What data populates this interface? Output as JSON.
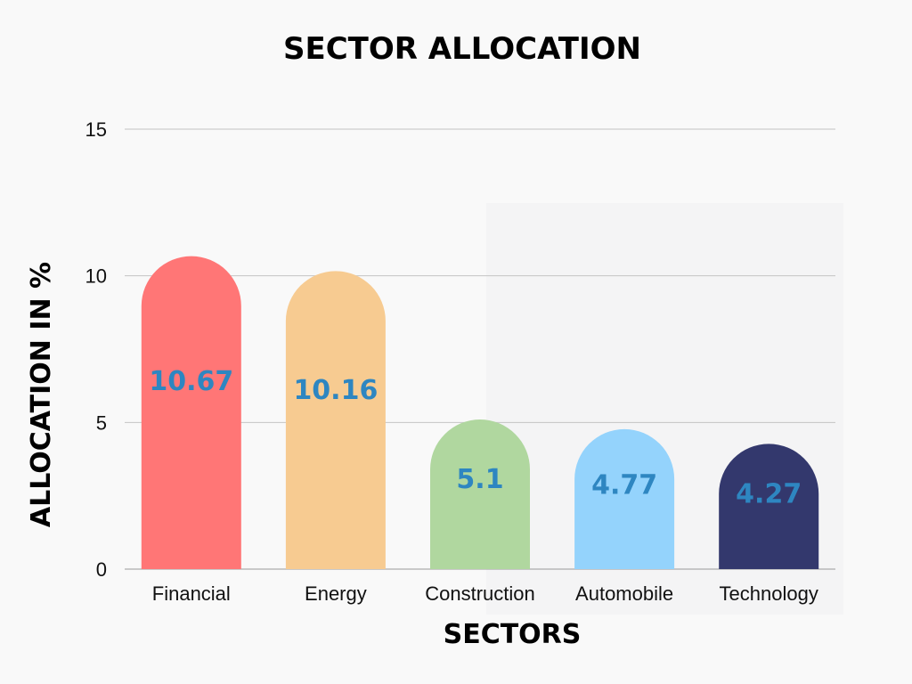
{
  "chart_data": {
    "type": "bar",
    "title": "SECTOR ALLOCATION",
    "xlabel": "SECTORS",
    "ylabel": "ALLOCATION IN %",
    "categories": [
      "Financial",
      "Energy",
      "Construction",
      "Automobile",
      "Technology"
    ],
    "values": [
      10.67,
      10.16,
      5.1,
      4.77,
      4.27
    ],
    "value_labels": [
      "10.67",
      "10.16",
      "5.1",
      "4.77",
      "4.27"
    ],
    "colors": [
      "#ff7676",
      "#f7cb91",
      "#b0d79f",
      "#94d3fc",
      "#33386d"
    ],
    "value_label_color": "#2e86c1",
    "ylim": [
      0,
      15
    ],
    "yticks": [
      0,
      5,
      10,
      15
    ],
    "grid": true,
    "legend": "none"
  }
}
